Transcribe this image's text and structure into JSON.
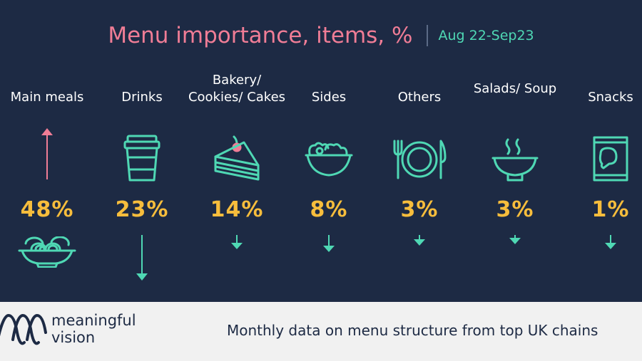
{
  "title": "Menu importance, items, %",
  "subtitle": "Aug 22-Sep23",
  "colors": {
    "background": "#1d2a44",
    "title": "#f07d96",
    "subtitle": "#4fd8b4",
    "percent": "#f7bd3c",
    "icon": "#4fd8b4",
    "up_arrow": "#f07d96"
  },
  "categories": [
    {
      "label": "Main meals",
      "percent": "48%",
      "icon": "noodle-bowl-icon",
      "trend": "up"
    },
    {
      "label": "Drinks",
      "percent": "23%",
      "icon": "coffee-cup-icon",
      "trend": "down"
    },
    {
      "label": "Bakery/ Cookies/ Cakes",
      "percent": "14%",
      "icon": "cake-slice-icon",
      "trend": "down"
    },
    {
      "label": "Sides",
      "percent": "8%",
      "icon": "salad-bowl-icon",
      "trend": "down"
    },
    {
      "label": "Others",
      "percent": "3%",
      "icon": "plate-cutlery-icon",
      "trend": "down"
    },
    {
      "label": "Salads/ Soup",
      "percent": "3%",
      "icon": "soup-bowl-icon",
      "trend": "down"
    },
    {
      "label": "Snacks",
      "percent": "1%",
      "icon": "snack-bag-icon",
      "trend": "down"
    }
  ],
  "footer": {
    "brand_line1": "meaningful",
    "brand_line2": "vision",
    "tagline": "Monthly data on menu structure from top UK chains"
  }
}
